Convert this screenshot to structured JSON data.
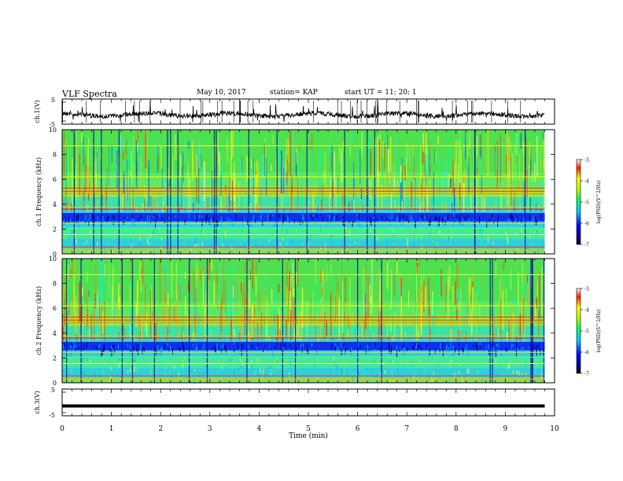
{
  "header": {
    "title": "VLF Spectra",
    "date": "May 10, 2017",
    "station": "station= KAP",
    "start": "start UT =  11: 20: 1"
  },
  "chart_data": [
    {
      "type": "line",
      "panel": "ch1-waveform",
      "ylabel": "ch.1(V)",
      "ylim": [
        -5,
        5
      ],
      "yticks": [
        "5",
        "-5"
      ],
      "xlim": [
        0,
        10
      ],
      "note_values": "noisy trace centered near 0 V"
    },
    {
      "type": "heatmap",
      "panel": "ch1-spectrogram",
      "ylabel": "ch.1 Frequency (kHz)",
      "ylim": [
        0,
        10
      ],
      "yticks": [
        "0",
        "2",
        "4",
        "6",
        "8",
        "10"
      ],
      "xlim": [
        0,
        9.8
      ],
      "colorbar": {
        "label": "log(PSD)(V^2/Hz)",
        "range": [
          -7,
          -3
        ],
        "ticks": [
          "-3",
          "-4",
          "-5",
          "-6",
          "-7"
        ]
      }
    },
    {
      "type": "heatmap",
      "panel": "ch2-spectrogram",
      "ylabel": "ch.2 Frequency (kHz)",
      "ylim": [
        0,
        10
      ],
      "yticks": [
        "0",
        "2",
        "4",
        "6",
        "8",
        "10"
      ],
      "xlim": [
        0,
        9.8
      ],
      "colorbar": {
        "label": "log(PSD)(V^2/Hz)",
        "range": [
          -7,
          -3
        ],
        "ticks": [
          "-3",
          "-4",
          "-5",
          "-6",
          "-7"
        ]
      }
    },
    {
      "type": "line",
      "panel": "ch3-waveform",
      "ylabel": "ch.3(V)",
      "ylim": [
        -5,
        5
      ],
      "yticks": [
        "5",
        "-5"
      ],
      "x": [
        0,
        9.8
      ],
      "y": [
        -1.5,
        -1.5
      ],
      "xlabel": "Time (min)",
      "xlim": [
        0,
        10
      ],
      "xticks": [
        "0",
        "1",
        "2",
        "3",
        "4",
        "5",
        "6",
        "7",
        "8",
        "9",
        "10"
      ]
    }
  ]
}
